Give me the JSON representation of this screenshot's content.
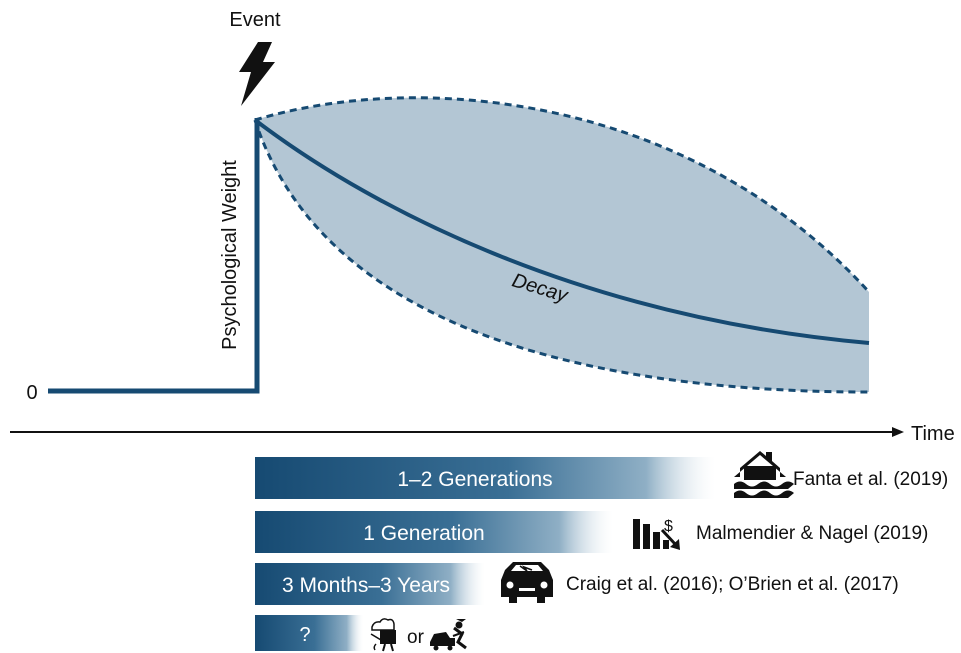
{
  "event": {
    "label": "Event",
    "icon": "lightning-bolt-icon"
  },
  "axes": {
    "y_label": "Psychological Weight",
    "y_zero": "0",
    "x_label": "Time"
  },
  "curve": {
    "label": "Decay"
  },
  "colors": {
    "primary": "#164a72",
    "band_fill": "#b3c6d4",
    "text": "#111111"
  },
  "durations": [
    {
      "bar_label": "1–2 Generations",
      "icon": "flooded-house-icon",
      "reference": "Fanta et al. (2019)"
    },
    {
      "bar_label": "1 Generation",
      "icon": "declining-stocks-icon",
      "reference": "Malmendier & Nagel (2019)"
    },
    {
      "bar_label": "3 Months–3 Years",
      "icon": "car-crash-icon",
      "reference": "Craig et al. (2016); O’Brien et al. (2017)"
    },
    {
      "bar_label": "?",
      "icons": [
        "food-plate-icon",
        "injured-car-icon"
      ],
      "connector": "or"
    }
  ]
}
